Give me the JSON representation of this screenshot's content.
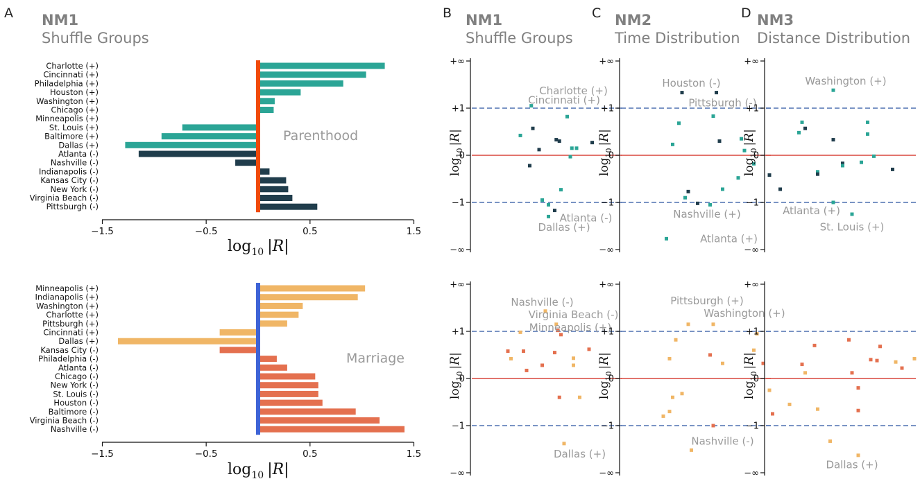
{
  "colors": {
    "teal": "#2ba596",
    "navy": "#203d4c",
    "lightorange": "#f0b666",
    "redorange": "#e4704f",
    "center_parenthood": "#f04a0a",
    "center_marriage": "#3e63d6",
    "zero_line": "#d9463d",
    "dashed": "#4f70b0",
    "title_gray": "#808080",
    "label_gray": "#9a9a9a"
  },
  "panel_letters": {
    "A": "A",
    "B": "B",
    "C": "C",
    "D": "D"
  },
  "panel_A": {
    "title1": "NM1",
    "title2": "Shuffle Groups",
    "xlabel_log": "log",
    "xlabel_sub": "10",
    "xlabel_abs": "|R|",
    "xticks": [
      "−1.5",
      "−0.5",
      "0.5",
      "1.5"
    ]
  },
  "panel_B": {
    "title1": "NM1",
    "title2": "Shuffle Groups"
  },
  "panel_C": {
    "title1": "NM2",
    "title2": "Time Distribution"
  },
  "panel_D": {
    "title1": "NM3",
    "title2": "Distance Distribution"
  },
  "scatter_axis": {
    "ylabel_log": "log",
    "ylabel_sub": "10",
    "ylabel_abs": "|R|",
    "yticks": [
      "+∞",
      "+1",
      "0",
      "−1",
      "−∞"
    ]
  },
  "chart_data": [
    {
      "id": "A-parenthood",
      "type": "bar",
      "orientation": "horizontal",
      "annotation": "Parenthood",
      "xlabel": "log10 |R|",
      "xlim": [
        -1.5,
        1.5
      ],
      "xticks": [
        -1.5,
        -0.5,
        0.5,
        1.5
      ],
      "categories": [
        "Charlotte (+)",
        "Cincinnati (+)",
        "Philadelphia (+)",
        "Houston (+)",
        "Washington (+)",
        "Chicago (+)",
        "Minneapolis (+)",
        "St. Louis (+)",
        "Baltimore (+)",
        "Dallas (+)",
        "Atlanta (-)",
        "Nashville (-)",
        "Indianapolis (-)",
        "Kansas City (-)",
        "New York (-)",
        "Virginia Beach (-)",
        "Pittsburgh (-)"
      ],
      "values": [
        1.22,
        1.04,
        0.82,
        0.41,
        0.16,
        0.15,
        -0.02,
        -0.73,
        -0.93,
        -1.28,
        -1.15,
        -0.22,
        0.11,
        0.27,
        0.29,
        0.33,
        0.57
      ],
      "groups": [
        "teal",
        "teal",
        "teal",
        "teal",
        "teal",
        "teal",
        "teal",
        "teal",
        "teal",
        "teal",
        "navy",
        "navy",
        "navy",
        "navy",
        "navy",
        "navy",
        "navy"
      ]
    },
    {
      "id": "A-marriage",
      "type": "bar",
      "orientation": "horizontal",
      "annotation": "Marriage",
      "xlabel": "log10 |R|",
      "xlim": [
        -1.5,
        1.5
      ],
      "xticks": [
        -1.5,
        -0.5,
        0.5,
        1.5
      ],
      "categories": [
        "Minneapolis (+)",
        "Indianapolis (+)",
        "Washington (+)",
        "Charlotte (+)",
        "Pittsburgh (+)",
        "Cincinnati (+)",
        "Dallas (+)",
        "Kansas City (-)",
        "Philadelphia (-)",
        "Atlanta (-)",
        "Chicago (-)",
        "New York (-)",
        "St. Louis (-)",
        "Houston (-)",
        "Baltimore (-)",
        "Virginia Beach (-)",
        "Nashville (-)"
      ],
      "values": [
        1.03,
        0.96,
        0.43,
        0.39,
        0.28,
        -0.37,
        -1.35,
        -0.37,
        0.18,
        0.28,
        0.55,
        0.58,
        0.58,
        0.62,
        0.94,
        1.17,
        1.41
      ],
      "groups": [
        "lightorange",
        "lightorange",
        "lightorange",
        "lightorange",
        "lightorange",
        "lightorange",
        "lightorange",
        "redorange",
        "redorange",
        "redorange",
        "redorange",
        "redorange",
        "redorange",
        "redorange",
        "redorange",
        "redorange",
        "redorange"
      ]
    },
    {
      "id": "B-parenthood",
      "type": "scatter",
      "ylabel": "log10 |R|",
      "ylim": [
        -2,
        2
      ],
      "points": [
        [
          1.9,
          -0.22,
          "navy"
        ],
        [
          1.95,
          1.05,
          "teal"
        ],
        [
          1.6,
          0.42,
          "teal"
        ],
        [
          2.0,
          0.57,
          "navy"
        ],
        [
          2.2,
          0.12,
          "navy"
        ],
        [
          2.75,
          0.33,
          "navy"
        ],
        [
          2.85,
          0.3,
          "navy"
        ],
        [
          2.5,
          -1.05,
          "teal"
        ],
        [
          3.1,
          0.82,
          "teal"
        ],
        [
          3.25,
          0.15,
          "teal"
        ],
        [
          3.4,
          0.15,
          "teal"
        ],
        [
          3.2,
          -0.03,
          "teal"
        ],
        [
          3.9,
          0.27,
          "navy"
        ],
        [
          2.9,
          -0.73,
          "teal"
        ],
        [
          2.3,
          -0.95,
          "teal"
        ],
        [
          2.7,
          -1.17,
          "navy"
        ],
        [
          2.5,
          -1.3,
          "teal"
        ]
      ],
      "labels": [
        [
          "Charlotte (+)",
          3.3,
          1.37
        ],
        [
          "Cincinnati (+)",
          3.0,
          1.17
        ],
        [
          "Atlanta (-)",
          3.7,
          -1.33
        ],
        [
          "Dallas (+)",
          3.0,
          -1.53
        ]
      ]
    },
    {
      "id": "C-parenthood",
      "type": "scatter",
      "ylabel": "log10 |R|",
      "ylim": [
        -2,
        2
      ],
      "points": [
        [
          2.0,
          1.33,
          "navy"
        ],
        [
          3.1,
          1.33,
          "navy"
        ],
        [
          1.9,
          0.68,
          "teal"
        ],
        [
          3.0,
          0.83,
          "teal"
        ],
        [
          1.7,
          0.23,
          "teal"
        ],
        [
          3.2,
          0.3,
          "navy"
        ],
        [
          3.9,
          0.35,
          "teal"
        ],
        [
          4.0,
          0.1,
          "teal"
        ],
        [
          4.3,
          -0.18,
          "teal"
        ],
        [
          4.8,
          -0.42,
          "navy"
        ],
        [
          3.8,
          -0.48,
          "teal"
        ],
        [
          2.2,
          -0.77,
          "navy"
        ],
        [
          3.3,
          -0.72,
          "teal"
        ],
        [
          2.1,
          -0.9,
          "teal"
        ],
        [
          2.5,
          -1.02,
          "navy"
        ],
        [
          2.9,
          -1.05,
          "teal"
        ],
        [
          1.5,
          -1.77,
          "teal"
        ]
      ],
      "labels": [
        [
          "Houston (-)",
          2.3,
          1.53
        ],
        [
          "Pittsburgh (-)",
          3.3,
          1.11
        ],
        [
          "Nashville (+)",
          2.8,
          -1.25
        ],
        [
          "Atlanta (+)",
          3.5,
          -1.77
        ]
      ]
    },
    {
      "id": "D-parenthood",
      "type": "scatter",
      "ylabel": "log10 |R|",
      "ylim": [
        -2,
        2
      ],
      "points": [
        [
          2.2,
          1.38,
          "teal"
        ],
        [
          1.2,
          0.7,
          "teal"
        ],
        [
          1.1,
          0.48,
          "teal"
        ],
        [
          1.3,
          0.57,
          "navy"
        ],
        [
          2.2,
          0.33,
          "navy"
        ],
        [
          3.3,
          0.7,
          "teal"
        ],
        [
          3.3,
          0.45,
          "teal"
        ],
        [
          3.5,
          -0.02,
          "teal"
        ],
        [
          3.1,
          -0.15,
          "teal"
        ],
        [
          2.5,
          -0.17,
          "navy"
        ],
        [
          2.5,
          -0.22,
          "teal"
        ],
        [
          4.1,
          -0.3,
          "navy"
        ],
        [
          1.7,
          -0.35,
          "teal"
        ],
        [
          1.7,
          -0.4,
          "navy"
        ],
        [
          0.5,
          -0.72,
          "navy"
        ],
        [
          2.2,
          -1.0,
          "teal"
        ],
        [
          2.8,
          -1.25,
          "teal"
        ]
      ],
      "labels": [
        [
          "Washington (+)",
          2.6,
          1.57
        ],
        [
          "Atlanta (+)",
          1.5,
          -1.18
        ],
        [
          "St. Louis (+)",
          2.8,
          -1.52
        ]
      ]
    },
    {
      "id": "B-marriage",
      "type": "scatter",
      "ylabel": "log10 |R|",
      "ylim": [
        -2,
        2
      ],
      "points": [
        [
          1.2,
          0.58,
          "redorange"
        ],
        [
          1.3,
          0.42,
          "lightorange"
        ],
        [
          1.6,
          0.98,
          "lightorange"
        ],
        [
          1.7,
          0.58,
          "redorange"
        ],
        [
          1.8,
          0.17,
          "redorange"
        ],
        [
          2.3,
          0.28,
          "redorange"
        ],
        [
          2.4,
          1.43,
          "lightorange"
        ],
        [
          2.7,
          0.55,
          "redorange"
        ],
        [
          2.75,
          1.15,
          "lightorange"
        ],
        [
          2.8,
          1.02,
          "redorange"
        ],
        [
          2.9,
          0.93,
          "redorange"
        ],
        [
          2.85,
          -0.4,
          "redorange"
        ],
        [
          3.3,
          0.43,
          "lightorange"
        ],
        [
          3.3,
          0.28,
          "lightorange"
        ],
        [
          3.5,
          -0.4,
          "lightorange"
        ],
        [
          3.8,
          0.62,
          "redorange"
        ],
        [
          3.0,
          -1.38,
          "lightorange"
        ]
      ],
      "labels": [
        [
          "Nashville (-)",
          2.3,
          1.62
        ],
        [
          "Virginia Beach (-)",
          3.3,
          1.35
        ],
        [
          "Minneapolis (+)",
          3.2,
          1.08
        ],
        [
          "Dallas (+)",
          3.5,
          -1.6
        ]
      ]
    },
    {
      "id": "C-marriage",
      "type": "scatter",
      "ylabel": "log10 |R|",
      "ylim": [
        -2,
        2
      ],
      "points": [
        [
          2.2,
          1.15,
          "lightorange"
        ],
        [
          3.0,
          1.15,
          "lightorange"
        ],
        [
          4.4,
          0.95,
          "lightorange"
        ],
        [
          1.8,
          0.82,
          "lightorange"
        ],
        [
          1.6,
          0.42,
          "lightorange"
        ],
        [
          2.9,
          0.5,
          "redorange"
        ],
        [
          3.3,
          0.32,
          "lightorange"
        ],
        [
          4.3,
          0.6,
          "lightorange"
        ],
        [
          4.6,
          0.32,
          "redorange"
        ],
        [
          4.8,
          -0.25,
          "lightorange"
        ],
        [
          2.0,
          -0.32,
          "lightorange"
        ],
        [
          1.7,
          -0.4,
          "lightorange"
        ],
        [
          1.6,
          -0.7,
          "lightorange"
        ],
        [
          1.4,
          -0.8,
          "lightorange"
        ],
        [
          4.9,
          -0.75,
          "redorange"
        ],
        [
          3.0,
          -1.0,
          "redorange"
        ],
        [
          2.3,
          -1.52,
          "lightorange"
        ]
      ],
      "labels": [
        [
          "Pittsburgh (+)",
          2.8,
          1.65
        ],
        [
          "Washington (+)",
          4.0,
          1.38
        ],
        [
          "Nashville (-)",
          3.3,
          -1.33
        ]
      ]
    },
    {
      "id": "D-marriage",
      "type": "scatter",
      "ylabel": "log10 |R|",
      "ylim": [
        -2,
        2
      ],
      "points": [
        [
          2.7,
          0.82,
          "redorange"
        ],
        [
          1.6,
          0.7,
          "redorange"
        ],
        [
          3.7,
          0.68,
          "redorange"
        ],
        [
          1.2,
          0.3,
          "redorange"
        ],
        [
          1.3,
          0.12,
          "lightorange"
        ],
        [
          2.8,
          0.12,
          "redorange"
        ],
        [
          3.4,
          0.4,
          "redorange"
        ],
        [
          3.6,
          0.38,
          "redorange"
        ],
        [
          4.2,
          0.35,
          "lightorange"
        ],
        [
          4.4,
          0.22,
          "redorange"
        ],
        [
          4.8,
          0.42,
          "lightorange"
        ],
        [
          3.0,
          -0.2,
          "redorange"
        ],
        [
          0.8,
          -0.55,
          "lightorange"
        ],
        [
          1.7,
          -0.65,
          "lightorange"
        ],
        [
          3.0,
          -0.68,
          "redorange"
        ],
        [
          2.1,
          -1.33,
          "lightorange"
        ],
        [
          3.0,
          -1.63,
          "lightorange"
        ]
      ],
      "labels": [
        [
          "Dallas (+)",
          2.8,
          -1.83
        ]
      ]
    }
  ]
}
